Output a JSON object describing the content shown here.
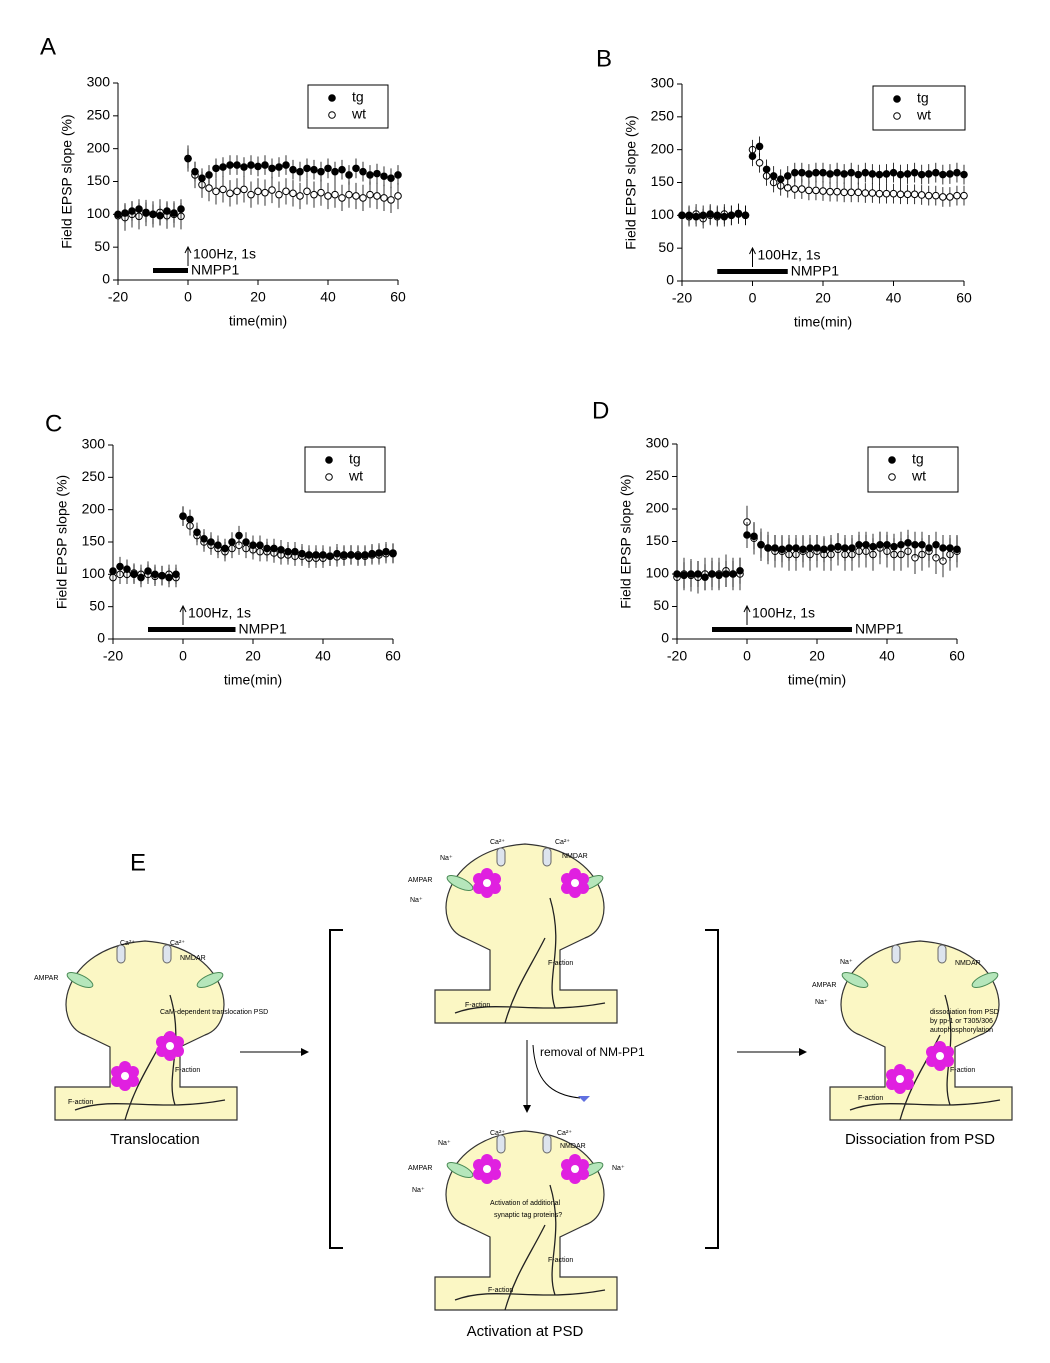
{
  "chart_data": [
    {
      "type": "scatter",
      "panel": "A",
      "xlabel": "time(min)",
      "ylabel": "Field EPSP slope (%)",
      "xlim": [
        -20,
        60
      ],
      "ylim": [
        0,
        300
      ],
      "xticks": [
        -20,
        0,
        20,
        40,
        60
      ],
      "yticks": [
        0,
        50,
        100,
        150,
        200,
        250,
        300
      ],
      "x": [
        -20,
        -18,
        -16,
        -14,
        -12,
        -10,
        -8,
        -6,
        -4,
        -2,
        0,
        2,
        4,
        6,
        8,
        10,
        12,
        14,
        16,
        18,
        20,
        22,
        24,
        26,
        28,
        30,
        32,
        34,
        36,
        38,
        40,
        42,
        44,
        46,
        48,
        50,
        52,
        54,
        56,
        58,
        60
      ],
      "series": [
        {
          "name": "tg",
          "marker": "filled",
          "color": "#000000",
          "error": 15,
          "values": [
            100,
            102,
            105,
            108,
            103,
            100,
            98,
            105,
            102,
            108,
            185,
            165,
            155,
            160,
            170,
            172,
            175,
            175,
            172,
            175,
            173,
            175,
            170,
            172,
            175,
            168,
            165,
            170,
            168,
            165,
            170,
            165,
            168,
            160,
            170,
            165,
            160,
            162,
            158,
            155,
            160
          ]
        },
        {
          "name": "wt",
          "marker": "open",
          "color": "#000000",
          "error": 20,
          "values": [
            98,
            95,
            100,
            97,
            102,
            100,
            103,
            98,
            100,
            97,
            185,
            160,
            145,
            140,
            135,
            138,
            132,
            135,
            138,
            130,
            135,
            133,
            137,
            130,
            135,
            132,
            128,
            135,
            130,
            133,
            128,
            130,
            125,
            130,
            128,
            125,
            130,
            128,
            125,
            122,
            128
          ]
        }
      ],
      "stimulus": {
        "label": "100Hz, 1s",
        "x": 0
      },
      "drug": {
        "label": "NMPP1",
        "x_range": [
          -10,
          0
        ]
      }
    },
    {
      "type": "scatter",
      "panel": "B",
      "xlabel": "time(min)",
      "ylabel": "Field EPSP slope (%)",
      "xlim": [
        -20,
        60
      ],
      "ylim": [
        0,
        300
      ],
      "xticks": [
        -20,
        0,
        20,
        40,
        60
      ],
      "yticks": [
        0,
        50,
        100,
        150,
        200,
        250,
        300
      ],
      "x": [
        -20,
        -18,
        -16,
        -14,
        -12,
        -10,
        -8,
        -6,
        -4,
        -2,
        0,
        2,
        4,
        6,
        8,
        10,
        12,
        14,
        16,
        18,
        20,
        22,
        24,
        26,
        28,
        30,
        32,
        34,
        36,
        38,
        40,
        42,
        44,
        46,
        48,
        50,
        52,
        54,
        56,
        58,
        60
      ],
      "series": [
        {
          "name": "tg",
          "marker": "filled",
          "color": "#000000",
          "error": 15,
          "values": [
            100,
            100,
            98,
            100,
            102,
            100,
            98,
            100,
            102,
            100,
            190,
            205,
            170,
            160,
            155,
            160,
            165,
            165,
            163,
            165,
            165,
            163,
            165,
            163,
            165,
            162,
            165,
            163,
            162,
            163,
            165,
            162,
            163,
            165,
            162,
            163,
            165,
            162,
            163,
            165,
            162
          ]
        },
        {
          "name": "wt",
          "marker": "open",
          "color": "#000000",
          "error": 15,
          "values": [
            100,
            98,
            102,
            95,
            100,
            98,
            102,
            100,
            103,
            100,
            200,
            180,
            160,
            150,
            145,
            142,
            140,
            140,
            138,
            138,
            137,
            136,
            136,
            135,
            135,
            135,
            134,
            134,
            133,
            133,
            133,
            132,
            132,
            132,
            131,
            130,
            130,
            128,
            128,
            130,
            130
          ]
        }
      ],
      "stimulus": {
        "label": "100Hz, 1s",
        "x": 0
      },
      "drug": {
        "label": "NMPP1",
        "x_range": [
          -10,
          10
        ]
      }
    },
    {
      "type": "scatter",
      "panel": "C",
      "xlabel": "time(min)",
      "ylabel": "Field EPSP slope (%)",
      "xlim": [
        -20,
        60
      ],
      "ylim": [
        0,
        300
      ],
      "xticks": [
        -20,
        0,
        20,
        40,
        60
      ],
      "yticks": [
        0,
        50,
        100,
        150,
        200,
        250,
        300
      ],
      "x": [
        -20,
        -18,
        -16,
        -14,
        -12,
        -10,
        -8,
        -6,
        -4,
        -2,
        0,
        2,
        4,
        6,
        8,
        10,
        12,
        14,
        16,
        18,
        20,
        22,
        24,
        26,
        28,
        30,
        32,
        34,
        36,
        38,
        40,
        42,
        44,
        46,
        48,
        50,
        52,
        54,
        56,
        58,
        60
      ],
      "series": [
        {
          "name": "tg",
          "marker": "filled",
          "color": "#000000",
          "error": 15,
          "values": [
            105,
            112,
            108,
            100,
            95,
            105,
            100,
            98,
            95,
            100,
            190,
            185,
            165,
            155,
            150,
            145,
            140,
            150,
            160,
            150,
            145,
            145,
            140,
            140,
            138,
            135,
            135,
            132,
            130,
            130,
            130,
            128,
            132,
            130,
            130,
            128,
            130,
            132,
            133,
            135,
            133
          ]
        },
        {
          "name": "wt",
          "marker": "open",
          "color": "#000000",
          "error": 15,
          "values": [
            95,
            100,
            100,
            102,
            100,
            100,
            97,
            98,
            100,
            95,
            190,
            175,
            160,
            150,
            145,
            140,
            135,
            140,
            145,
            140,
            138,
            135,
            135,
            133,
            130,
            130,
            128,
            128,
            125,
            125,
            125,
            128,
            127,
            128,
            130,
            130,
            128,
            130,
            130,
            132,
            132
          ]
        }
      ],
      "stimulus": {
        "label": "100Hz, 1s",
        "x": 0
      },
      "drug": {
        "label": "NMPP1",
        "x_range": [
          -10,
          15
        ]
      }
    },
    {
      "type": "scatter",
      "panel": "D",
      "xlabel": "time(min)",
      "ylabel": "Field EPSP slope (%)",
      "xlim": [
        -20,
        60
      ],
      "ylim": [
        0,
        300
      ],
      "xticks": [
        -20,
        0,
        20,
        40,
        60
      ],
      "yticks": [
        0,
        50,
        100,
        150,
        200,
        250,
        300
      ],
      "x": [
        -20,
        -18,
        -16,
        -14,
        -12,
        -10,
        -8,
        -6,
        -4,
        -2,
        0,
        2,
        4,
        6,
        8,
        10,
        12,
        14,
        16,
        18,
        20,
        22,
        24,
        26,
        28,
        30,
        32,
        34,
        36,
        38,
        40,
        42,
        44,
        46,
        48,
        50,
        52,
        54,
        56,
        58,
        60
      ],
      "series": [
        {
          "name": "tg",
          "marker": "filled",
          "color": "#000000",
          "error": 20,
          "values": [
            100,
            98,
            100,
            100,
            95,
            100,
            98,
            100,
            100,
            105,
            160,
            158,
            145,
            140,
            140,
            138,
            140,
            140,
            138,
            140,
            140,
            138,
            140,
            142,
            140,
            140,
            145,
            145,
            142,
            145,
            145,
            142,
            145,
            148,
            145,
            145,
            140,
            145,
            140,
            140,
            138
          ]
        },
        {
          "name": "wt",
          "marker": "open",
          "color": "#000000",
          "error": 25,
          "values": [
            95,
            100,
            98,
            95,
            100,
            100,
            100,
            105,
            100,
            100,
            180,
            155,
            145,
            140,
            135,
            135,
            130,
            130,
            135,
            130,
            135,
            130,
            130,
            138,
            130,
            130,
            135,
            135,
            130,
            140,
            135,
            130,
            130,
            135,
            125,
            130,
            135,
            125,
            120,
            130,
            135
          ]
        }
      ],
      "stimulus": {
        "label": "100Hz, 1s",
        "x": 0
      },
      "drug": {
        "label": "NMPP1",
        "x_range": [
          -10,
          30
        ]
      }
    }
  ],
  "diagram": {
    "panel": "E",
    "translocation": {
      "caption": "Translocation",
      "ampar": "AMPAR",
      "nmdar": "NMDAR",
      "ca1": "Ca²⁺",
      "ca2": "Ca²⁺",
      "note": "CaM-dependent translocation PSD",
      "factin1": "F-action",
      "factin2": "F-action"
    },
    "removal": "removal of NM-PP1",
    "activation_top": {
      "ampar": "AMPAR",
      "nmdar": "NMDAR",
      "na1": "Na⁺",
      "na2": "Na⁺",
      "ca1": "Ca²⁺",
      "ca2": "Ca²⁺",
      "factin1": "F-action",
      "factin2": "F-action"
    },
    "activation": {
      "caption": "Activation at PSD",
      "ampar": "AMPAR",
      "nmdar": "NMDAR",
      "na1": "Na⁺",
      "na2": "Na⁺",
      "na3": "Na⁺",
      "ca1": "Ca²⁺",
      "ca2": "Ca²⁺",
      "note1": "Activation of additional",
      "note2": "synaptic tag proteins?",
      "factin1": "F-action",
      "factin2": "F-action"
    },
    "dissociation": {
      "caption": "Dissociation from PSD",
      "ampar": "AMPAR",
      "nmdar": "NMDAR",
      "na1": "Na⁺",
      "na2": "Na⁺",
      "note1": "dissociation from PSD",
      "note2": "by pp-1 or T305/306",
      "note3": "autophosphorylation",
      "factin1": "F-action",
      "factin2": "F-action"
    }
  }
}
